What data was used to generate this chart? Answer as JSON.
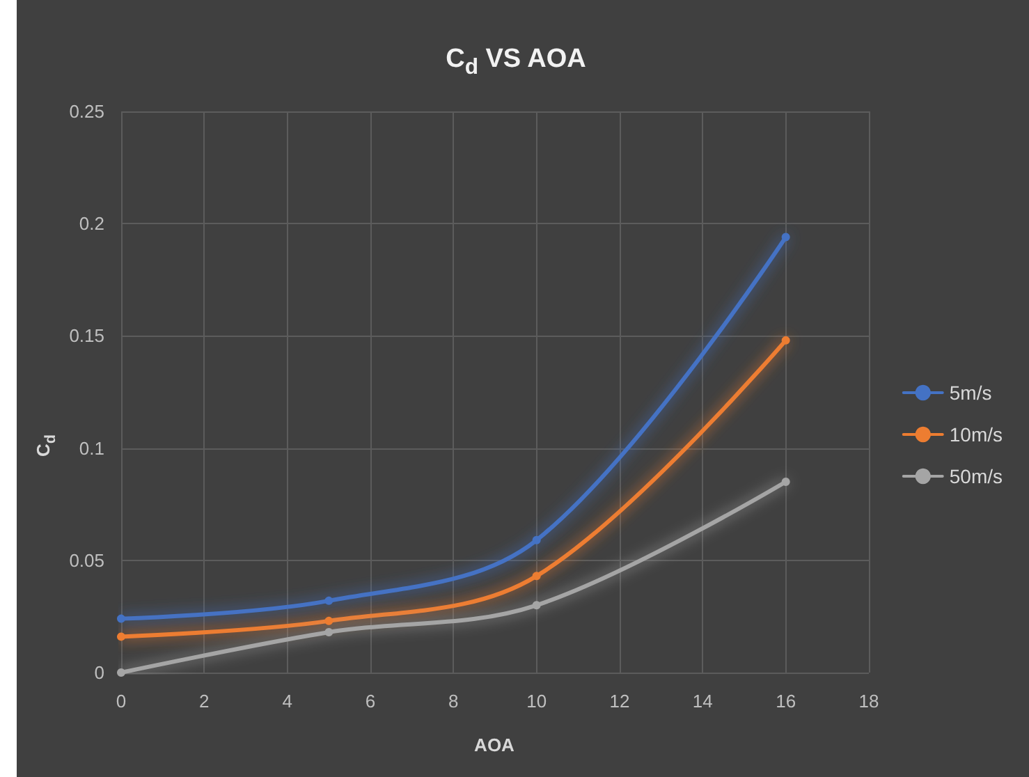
{
  "chart_data": {
    "type": "line",
    "title": "C$_{d}$ VS AOA",
    "xlabel": "AOA",
    "ylabel": "C$_{d}$",
    "x": [
      0,
      5,
      10,
      16
    ],
    "series": [
      {
        "name": "5m/s",
        "color": "#4472c4",
        "values": [
          0.024,
          0.032,
          0.059,
          0.194
        ]
      },
      {
        "name": "10m/s",
        "color": "#ed7d31",
        "values": [
          0.016,
          0.023,
          0.043,
          0.148
        ]
      },
      {
        "name": "50m/s",
        "color": "#a5a5a5",
        "values": [
          0,
          0.018,
          0.03,
          0.085
        ]
      }
    ],
    "xlim": [
      0,
      18
    ],
    "xticks": [
      0,
      2,
      4,
      6,
      8,
      10,
      12,
      14,
      16,
      18
    ],
    "ylim": [
      0,
      0.25
    ],
    "yticks": [
      0,
      0.05,
      0.1,
      0.15,
      0.2,
      0.25
    ],
    "grid": true,
    "legend": "right",
    "marker": "circle",
    "line_style": "solid"
  }
}
